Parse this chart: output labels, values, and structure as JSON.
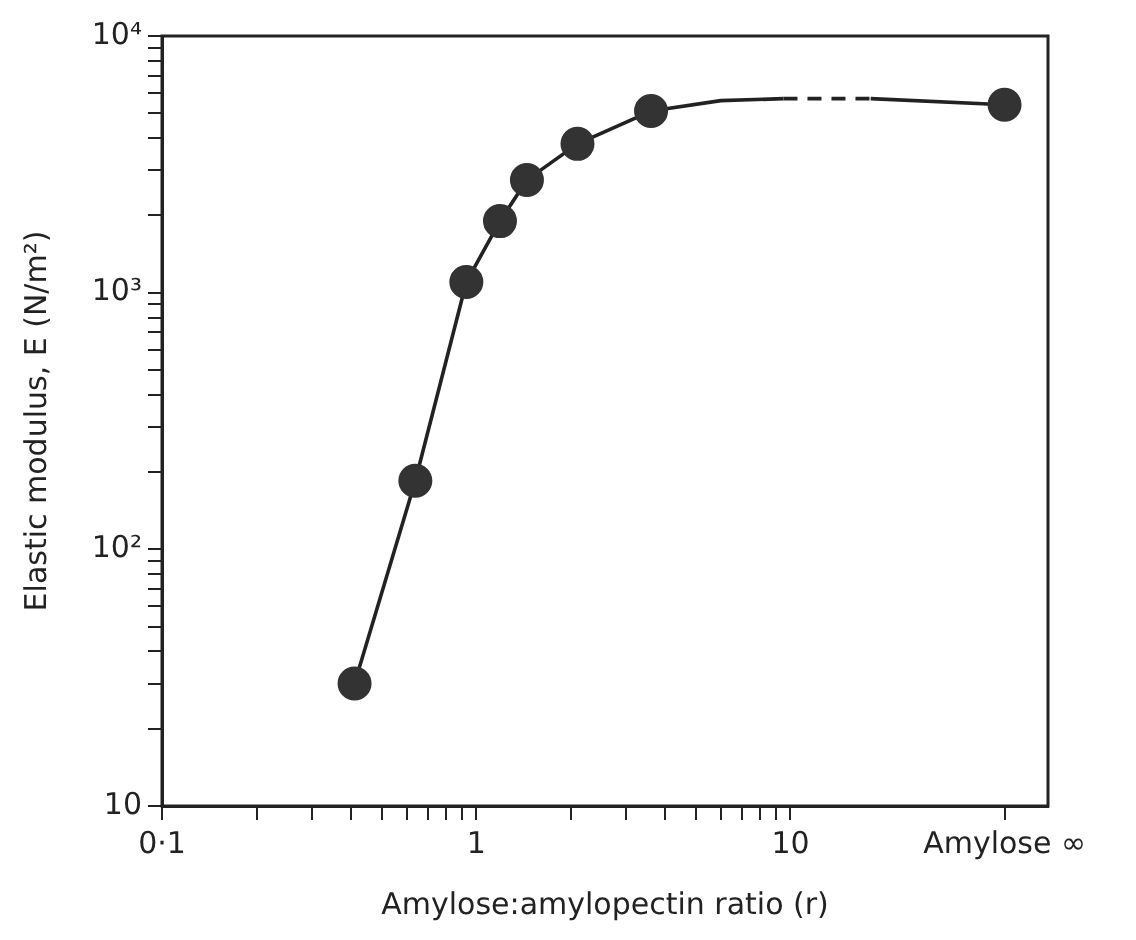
{
  "chart_data": {
    "type": "scatter",
    "xlabel": "Amylose:amylopectin ratio (r)",
    "ylabel": "Elastic modulus, E (N/m²)",
    "log": "xy",
    "marker": "circle",
    "grid": false,
    "legend": false,
    "xlim": [
      0.1,
      66
    ],
    "ylim": [
      10,
      10000
    ],
    "xticks": [
      {
        "value": 0.1,
        "label": "0·1"
      },
      {
        "value": 0.2,
        "label": null
      },
      {
        "value": 0.3,
        "label": null
      },
      {
        "value": 0.4,
        "label": null
      },
      {
        "value": 0.5,
        "label": null
      },
      {
        "value": 0.6,
        "label": null
      },
      {
        "value": 0.7,
        "label": null
      },
      {
        "value": 0.8,
        "label": null
      },
      {
        "value": 0.9,
        "label": null
      },
      1,
      {
        "value": 2,
        "label": null
      },
      {
        "value": 3,
        "label": null
      },
      {
        "value": 4,
        "label": null
      },
      {
        "value": 5,
        "label": null
      },
      {
        "value": 6,
        "label": null
      },
      {
        "value": 7,
        "label": null
      },
      {
        "value": 8,
        "label": null
      },
      {
        "value": 9,
        "label": null
      },
      10,
      {
        "value": 48,
        "label": "Amylose ∞"
      }
    ],
    "yticks": [
      10,
      {
        "value": 20,
        "label": null
      },
      {
        "value": 30,
        "label": null
      },
      {
        "value": 40,
        "label": null
      },
      {
        "value": 50,
        "label": null
      },
      {
        "value": 60,
        "label": null
      },
      {
        "value": 70,
        "label": null
      },
      {
        "value": 80,
        "label": null
      },
      {
        "value": 90,
        "label": null
      },
      {
        "value": 100,
        "label": "10²"
      },
      {
        "value": 200,
        "label": null
      },
      {
        "value": 300,
        "label": null
      },
      {
        "value": 400,
        "label": null
      },
      {
        "value": 500,
        "label": null
      },
      {
        "value": 600,
        "label": null
      },
      {
        "value": 700,
        "label": null
      },
      {
        "value": 800,
        "label": null
      },
      {
        "value": 900,
        "label": null
      },
      {
        "value": 1000,
        "label": "10³"
      },
      {
        "value": 2000,
        "label": null
      },
      {
        "value": 3000,
        "label": null
      },
      {
        "value": 4000,
        "label": null
      },
      {
        "value": 5000,
        "label": null
      },
      {
        "value": 6000,
        "label": null
      },
      {
        "value": 7000,
        "label": null
      },
      {
        "value": 8000,
        "label": null
      },
      {
        "value": 9000,
        "label": null
      },
      {
        "value": 10000,
        "label": "10⁴"
      }
    ],
    "series": [
      {
        "color": "#333333",
        "x": [
          0.41,
          0.64,
          0.93,
          1.19,
          1.45,
          2.1,
          3.6,
          48
        ],
        "values": [
          30,
          185,
          1100,
          1900,
          2750,
          3800,
          5100,
          5400
        ]
      },
      {
        "type": "line",
        "color": "#222222",
        "marker": "none",
        "line_style": "solid",
        "x": [
          0.41,
          0.64,
          0.93,
          1.19,
          1.45,
          2.1,
          3.6,
          6,
          9.5
        ],
        "values": [
          30,
          185,
          1100,
          1900,
          2750,
          3800,
          5100,
          5600,
          5700
        ]
      },
      {
        "type": "line",
        "color": "#222222",
        "marker": "none",
        "line_style": "dashed",
        "x": [
          9.5,
          18
        ],
        "values": [
          5700,
          5700
        ]
      },
      {
        "type": "line",
        "color": "#222222",
        "marker": "none",
        "line_style": "solid",
        "x": [
          18,
          48
        ],
        "values": [
          5700,
          5400
        ]
      }
    ]
  }
}
